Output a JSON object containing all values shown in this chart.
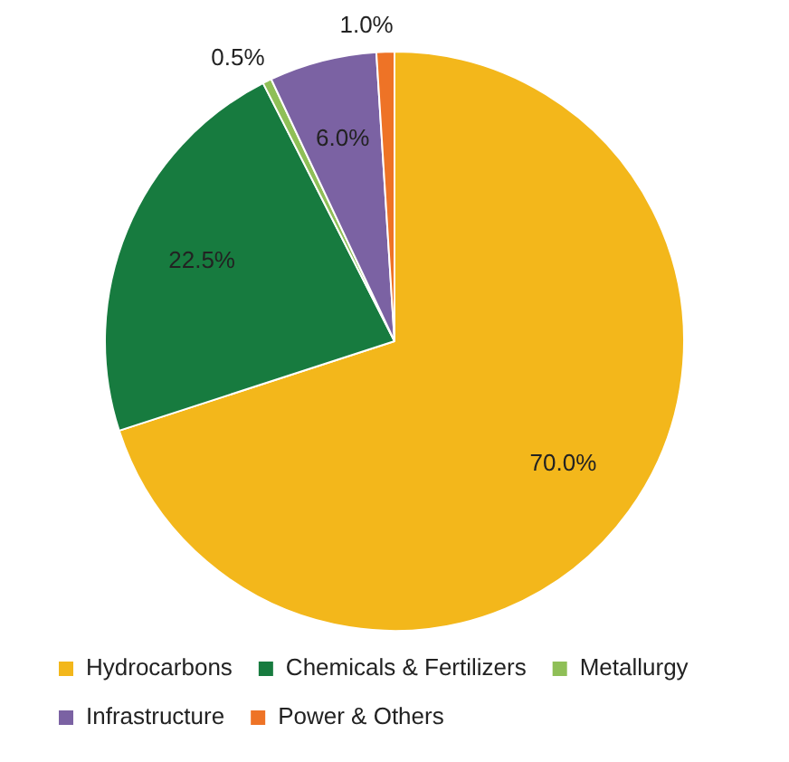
{
  "chart_data": {
    "type": "pie",
    "categories": [
      "Hydrocarbons",
      "Chemicals & Fertilizers",
      "Metallurgy",
      "Infrastructure",
      "Power & Others"
    ],
    "values": [
      70.0,
      22.5,
      0.5,
      6.0,
      1.0
    ],
    "colors": [
      "#f3b71b",
      "#177b3f",
      "#8fbf57",
      "#7b62a3",
      "#ee7326"
    ],
    "value_labels": [
      "70.0%",
      "22.5%",
      "0.5%",
      "6.0%",
      "1.0%"
    ],
    "legend": "bottom"
  }
}
